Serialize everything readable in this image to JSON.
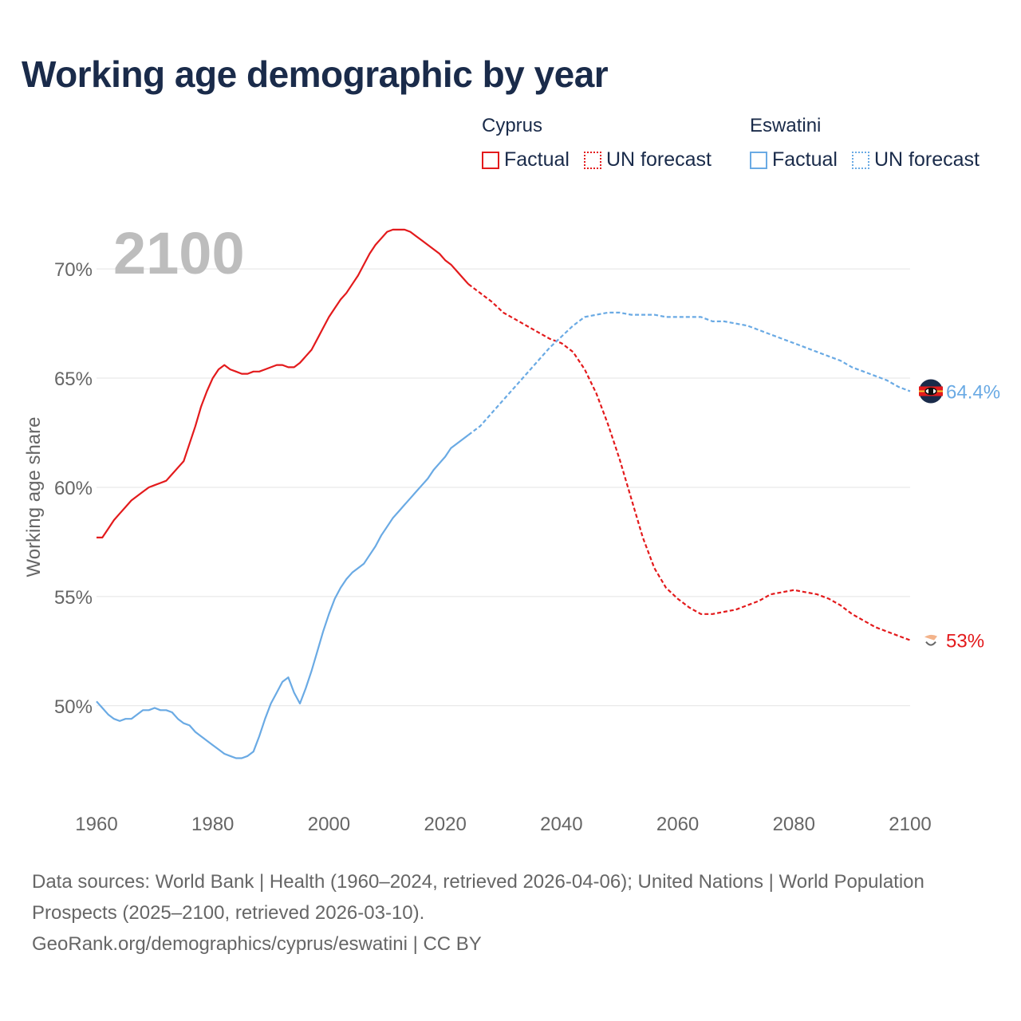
{
  "title": "Working age demographic by year",
  "legend": {
    "groups": [
      {
        "name": "Cyprus",
        "factual": "Factual",
        "forecast": "UN forecast",
        "color": "#e31a1c"
      },
      {
        "name": "Eswatini",
        "factual": "Factual",
        "forecast": "UN forecast",
        "color": "#6aaae4"
      }
    ]
  },
  "sources": {
    "line1": "Data sources: World Bank | Health (1960–2024, retrieved 2026-04-06); United Nations | World Population Prospects (2025–2100, retrieved 2026-03-10).",
    "line2": "GeoRank.org/demographics/cyprus/eswatini | CC BY"
  },
  "chart_data": {
    "type": "line",
    "title": "Working age demographic by year",
    "year_label": "2100",
    "xlabel": "",
    "ylabel": "Working age share",
    "xlim": [
      1960,
      2100
    ],
    "ylim": [
      45.5,
      73
    ],
    "x_ticks": [
      "1960",
      "1980",
      "2000",
      "2020",
      "2040",
      "2060",
      "2080",
      "2100"
    ],
    "y_ticks": [
      {
        "value": 50,
        "label": "50%"
      },
      {
        "value": 55,
        "label": "55%"
      },
      {
        "value": 60,
        "label": "60%"
      },
      {
        "value": 65,
        "label": "65%"
      },
      {
        "value": 70,
        "label": "70%"
      }
    ],
    "grid": true,
    "series": [
      {
        "name": "Cyprus",
        "color": "#e31a1c",
        "end_label": "53%",
        "factual": [
          [
            1960,
            57.7
          ],
          [
            1961,
            57.7
          ],
          [
            1962,
            58.1
          ],
          [
            1963,
            58.5
          ],
          [
            1964,
            58.8
          ],
          [
            1965,
            59.1
          ],
          [
            1966,
            59.4
          ],
          [
            1967,
            59.6
          ],
          [
            1968,
            59.8
          ],
          [
            1969,
            60.0
          ],
          [
            1970,
            60.1
          ],
          [
            1971,
            60.2
          ],
          [
            1972,
            60.3
          ],
          [
            1973,
            60.6
          ],
          [
            1974,
            60.9
          ],
          [
            1975,
            61.2
          ],
          [
            1976,
            62.0
          ],
          [
            1977,
            62.8
          ],
          [
            1978,
            63.7
          ],
          [
            1979,
            64.4
          ],
          [
            1980,
            65.0
          ],
          [
            1981,
            65.4
          ],
          [
            1982,
            65.6
          ],
          [
            1983,
            65.4
          ],
          [
            1984,
            65.3
          ],
          [
            1985,
            65.2
          ],
          [
            1986,
            65.2
          ],
          [
            1987,
            65.3
          ],
          [
            1988,
            65.3
          ],
          [
            1989,
            65.4
          ],
          [
            1990,
            65.5
          ],
          [
            1991,
            65.6
          ],
          [
            1992,
            65.6
          ],
          [
            1993,
            65.5
          ],
          [
            1994,
            65.5
          ],
          [
            1995,
            65.7
          ],
          [
            1996,
            66.0
          ],
          [
            1997,
            66.3
          ],
          [
            1998,
            66.8
          ],
          [
            1999,
            67.3
          ],
          [
            2000,
            67.8
          ],
          [
            2001,
            68.2
          ],
          [
            2002,
            68.6
          ],
          [
            2003,
            68.9
          ],
          [
            2004,
            69.3
          ],
          [
            2005,
            69.7
          ],
          [
            2006,
            70.2
          ],
          [
            2007,
            70.7
          ],
          [
            2008,
            71.1
          ],
          [
            2009,
            71.4
          ],
          [
            2010,
            71.7
          ],
          [
            2011,
            71.8
          ],
          [
            2012,
            71.8
          ],
          [
            2013,
            71.8
          ],
          [
            2014,
            71.7
          ],
          [
            2015,
            71.5
          ],
          [
            2016,
            71.3
          ],
          [
            2017,
            71.1
          ],
          [
            2018,
            70.9
          ],
          [
            2019,
            70.7
          ],
          [
            2020,
            70.4
          ],
          [
            2021,
            70.2
          ],
          [
            2022,
            69.9
          ],
          [
            2023,
            69.6
          ],
          [
            2024,
            69.3
          ]
        ],
        "forecast": [
          [
            2024,
            69.3
          ],
          [
            2026,
            68.9
          ],
          [
            2028,
            68.5
          ],
          [
            2030,
            68.0
          ],
          [
            2032,
            67.7
          ],
          [
            2034,
            67.4
          ],
          [
            2036,
            67.1
          ],
          [
            2038,
            66.8
          ],
          [
            2040,
            66.6
          ],
          [
            2042,
            66.2
          ],
          [
            2044,
            65.4
          ],
          [
            2046,
            64.3
          ],
          [
            2048,
            62.9
          ],
          [
            2050,
            61.3
          ],
          [
            2052,
            59.5
          ],
          [
            2054,
            57.7
          ],
          [
            2056,
            56.3
          ],
          [
            2058,
            55.4
          ],
          [
            2060,
            54.9
          ],
          [
            2062,
            54.5
          ],
          [
            2064,
            54.2
          ],
          [
            2066,
            54.2
          ],
          [
            2068,
            54.3
          ],
          [
            2070,
            54.4
          ],
          [
            2072,
            54.6
          ],
          [
            2074,
            54.8
          ],
          [
            2076,
            55.1
          ],
          [
            2078,
            55.2
          ],
          [
            2080,
            55.3
          ],
          [
            2082,
            55.2
          ],
          [
            2084,
            55.1
          ],
          [
            2086,
            54.9
          ],
          [
            2088,
            54.6
          ],
          [
            2090,
            54.2
          ],
          [
            2092,
            53.9
          ],
          [
            2094,
            53.6
          ],
          [
            2096,
            53.4
          ],
          [
            2098,
            53.2
          ],
          [
            2100,
            53.0
          ]
        ]
      },
      {
        "name": "Eswatini",
        "color": "#6aaae4",
        "end_label": "64.4%",
        "factual": [
          [
            1960,
            50.2
          ],
          [
            1961,
            49.9
          ],
          [
            1962,
            49.6
          ],
          [
            1963,
            49.4
          ],
          [
            1964,
            49.3
          ],
          [
            1965,
            49.4
          ],
          [
            1966,
            49.4
          ],
          [
            1967,
            49.6
          ],
          [
            1968,
            49.8
          ],
          [
            1969,
            49.8
          ],
          [
            1970,
            49.9
          ],
          [
            1971,
            49.8
          ],
          [
            1972,
            49.8
          ],
          [
            1973,
            49.7
          ],
          [
            1974,
            49.4
          ],
          [
            1975,
            49.2
          ],
          [
            1976,
            49.1
          ],
          [
            1977,
            48.8
          ],
          [
            1978,
            48.6
          ],
          [
            1979,
            48.4
          ],
          [
            1980,
            48.2
          ],
          [
            1981,
            48.0
          ],
          [
            1982,
            47.8
          ],
          [
            1983,
            47.7
          ],
          [
            1984,
            47.6
          ],
          [
            1985,
            47.6
          ],
          [
            1986,
            47.7
          ],
          [
            1987,
            47.9
          ],
          [
            1988,
            48.6
          ],
          [
            1989,
            49.4
          ],
          [
            1990,
            50.1
          ],
          [
            1991,
            50.6
          ],
          [
            1992,
            51.1
          ],
          [
            1993,
            51.3
          ],
          [
            1994,
            50.6
          ],
          [
            1995,
            50.1
          ],
          [
            1996,
            50.8
          ],
          [
            1997,
            51.6
          ],
          [
            1998,
            52.5
          ],
          [
            1999,
            53.4
          ],
          [
            2000,
            54.2
          ],
          [
            2001,
            54.9
          ],
          [
            2002,
            55.4
          ],
          [
            2003,
            55.8
          ],
          [
            2004,
            56.1
          ],
          [
            2005,
            56.3
          ],
          [
            2006,
            56.5
          ],
          [
            2007,
            56.9
          ],
          [
            2008,
            57.3
          ],
          [
            2009,
            57.8
          ],
          [
            2010,
            58.2
          ],
          [
            2011,
            58.6
          ],
          [
            2012,
            58.9
          ],
          [
            2013,
            59.2
          ],
          [
            2014,
            59.5
          ],
          [
            2015,
            59.8
          ],
          [
            2016,
            60.1
          ],
          [
            2017,
            60.4
          ],
          [
            2018,
            60.8
          ],
          [
            2019,
            61.1
          ],
          [
            2020,
            61.4
          ],
          [
            2021,
            61.8
          ],
          [
            2022,
            62.0
          ],
          [
            2023,
            62.2
          ],
          [
            2024,
            62.4
          ]
        ],
        "forecast": [
          [
            2024,
            62.4
          ],
          [
            2026,
            62.8
          ],
          [
            2028,
            63.4
          ],
          [
            2030,
            64.0
          ],
          [
            2032,
            64.6
          ],
          [
            2034,
            65.2
          ],
          [
            2036,
            65.8
          ],
          [
            2038,
            66.4
          ],
          [
            2040,
            66.9
          ],
          [
            2042,
            67.4
          ],
          [
            2044,
            67.8
          ],
          [
            2046,
            67.9
          ],
          [
            2048,
            68.0
          ],
          [
            2050,
            68.0
          ],
          [
            2052,
            67.9
          ],
          [
            2054,
            67.9
          ],
          [
            2056,
            67.9
          ],
          [
            2058,
            67.8
          ],
          [
            2060,
            67.8
          ],
          [
            2062,
            67.8
          ],
          [
            2064,
            67.8
          ],
          [
            2066,
            67.6
          ],
          [
            2068,
            67.6
          ],
          [
            2070,
            67.5
          ],
          [
            2072,
            67.4
          ],
          [
            2074,
            67.2
          ],
          [
            2076,
            67.0
          ],
          [
            2078,
            66.8
          ],
          [
            2080,
            66.6
          ],
          [
            2082,
            66.4
          ],
          [
            2084,
            66.2
          ],
          [
            2086,
            66.0
          ],
          [
            2088,
            65.8
          ],
          [
            2090,
            65.5
          ],
          [
            2092,
            65.3
          ],
          [
            2094,
            65.1
          ],
          [
            2096,
            64.9
          ],
          [
            2098,
            64.6
          ],
          [
            2100,
            64.4
          ]
        ]
      }
    ]
  }
}
